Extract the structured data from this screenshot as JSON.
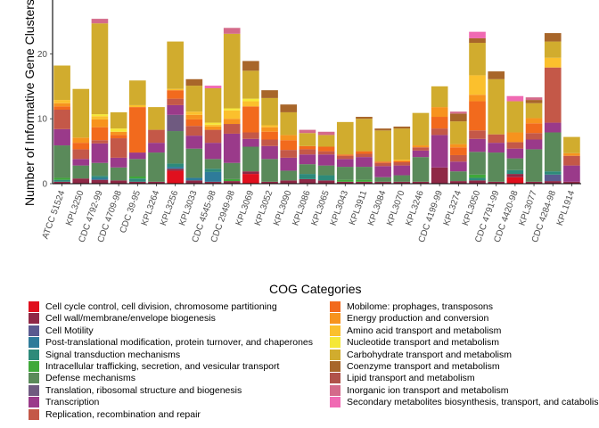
{
  "chart_data": {
    "type": "bar",
    "stacked": true,
    "ylabel": "Number of Informative Gene Clusters",
    "ylim": [
      0,
      28
    ],
    "yticks": [
      0,
      10,
      20
    ],
    "legend_title": "COG Categories",
    "legend_position": "bottom",
    "grid": false,
    "categories": [
      "ATCC 51524",
      "KPL3250",
      "CDC 4792-99",
      "CDC 4709-98",
      "CDC 39-95",
      "KPL3264",
      "KPL3256",
      "KPL3033",
      "CDC 4545-98",
      "CDC 2949-98",
      "KPL3069",
      "KPL3052",
      "KPL3090",
      "KPL3086",
      "KPL3065",
      "KPL3043",
      "KPL3911",
      "KPL3084",
      "KPL3070",
      "KPL3246",
      "CDC 4199-99",
      "KPL3274",
      "KPL3050",
      "CDC 4791-99",
      "CDC 4420-98",
      "KPL3077",
      "CDC 4284-98",
      "KPL1914"
    ],
    "series": [
      {
        "name": "Cell cycle control, cell division, chromosome partitioning",
        "color": "#e0101e",
        "values": [
          0,
          0,
          0,
          0,
          0,
          0,
          2,
          0,
          0,
          0,
          1.5,
          0,
          0,
          0,
          0,
          0,
          0,
          0,
          0,
          0,
          0,
          0,
          0,
          0,
          1,
          0,
          0,
          0
        ]
      },
      {
        "name": "Cell wall/membrane/envelope biogenesis",
        "color": "#8f2846",
        "values": [
          0.3,
          0.8,
          0.6,
          0.5,
          0.3,
          0.3,
          0.3,
          0.5,
          0.3,
          0.4,
          0.4,
          0.3,
          0.5,
          0.7,
          0.5,
          0.3,
          0.3,
          0.3,
          0.3,
          0.3,
          2.5,
          0.4,
          0.5,
          0.3,
          0.5,
          0.3,
          0.4,
          0.3
        ]
      },
      {
        "name": "Cell Motility",
        "color": "#5a5a8f",
        "values": [
          0,
          0,
          0,
          0,
          0,
          0,
          0,
          0,
          0,
          0,
          0,
          0,
          0,
          0,
          0,
          0,
          0,
          0,
          0,
          0,
          0,
          0,
          0,
          0,
          0,
          0,
          1,
          0
        ]
      },
      {
        "name": "Post-translational modification, protein turnover, and chaperones",
        "color": "#2e7b9a",
        "values": [
          0,
          0,
          0.3,
          0,
          0,
          0,
          0.3,
          0.4,
          1.5,
          0,
          0,
          0,
          0,
          0,
          0,
          0,
          0,
          0,
          0,
          0,
          0,
          0,
          0,
          0,
          0,
          0,
          0,
          0
        ]
      },
      {
        "name": "Signal transduction mechanisms",
        "color": "#2d8a7a",
        "values": [
          0.3,
          0,
          0.3,
          0,
          0.5,
          0,
          0.5,
          0,
          0.5,
          0,
          0,
          0,
          0,
          0.8,
          0.8,
          0,
          0,
          0,
          0,
          0,
          0,
          0,
          0.4,
          0,
          0.6,
          0,
          0.5,
          0
        ]
      },
      {
        "name": "Intracellular trafficking, secretion, and vesicular transport",
        "color": "#3fa83a",
        "values": [
          0.3,
          0,
          0,
          0,
          0.3,
          0,
          0,
          0,
          0,
          0.3,
          0,
          0,
          0,
          0,
          0,
          0.3,
          0.3,
          0,
          0,
          0,
          0,
          0,
          0.5,
          0,
          0,
          0,
          0,
          0
        ]
      },
      {
        "name": "Defense mechanisms",
        "color": "#5a8a5a",
        "values": [
          5,
          2,
          2,
          2,
          2.7,
          4.5,
          5,
          4.5,
          1.5,
          2.5,
          3.8,
          3.5,
          1.5,
          1.5,
          1.5,
          2,
          2,
          0.7,
          1,
          3.8,
          0,
          1.5,
          3.5,
          4.5,
          1.8,
          5,
          6,
          0
        ]
      },
      {
        "name": "Translation, ribosomal structure and biogenesis",
        "color": "#6f5a80",
        "values": [
          0,
          0,
          0,
          0,
          0,
          0,
          2.5,
          0,
          0,
          0,
          0,
          0,
          0,
          0,
          0,
          0,
          0,
          0,
          0,
          0,
          0,
          0,
          0,
          0,
          0,
          0,
          0,
          0
        ]
      },
      {
        "name": "Transcription",
        "color": "#9a3a8a",
        "values": [
          2.5,
          1,
          3,
          1.5,
          1,
          1.5,
          1.5,
          2,
          2.5,
          4.5,
          1.2,
          2,
          2,
          1.5,
          1.7,
          1.2,
          1.5,
          1.7,
          1.5,
          1,
          5,
          1.5,
          2,
          1.5,
          1.5,
          1.5,
          1.5,
          2.5
        ]
      },
      {
        "name": "Replication, recombination and repair",
        "color": "#c45848",
        "values": [
          3,
          1.5,
          0.5,
          3,
          0,
          2,
          1,
          1.5,
          2,
          1.5,
          1,
          1,
          1.2,
          0.8,
          0.5,
          0.5,
          0.5,
          0.5,
          0.5,
          0.5,
          1,
          1,
          1.3,
          1.3,
          1,
          1,
          8.5,
          1.5
        ]
      },
      {
        "name": "Mobilome: prophages, transposons",
        "color": "#f26a1d",
        "values": [
          0.5,
          1,
          2,
          0.5,
          7,
          0,
          1.3,
          1,
          0,
          0,
          4,
          1.2,
          1.5,
          0.5,
          0.7,
          0.2,
          0.4,
          0.2,
          0.2,
          0,
          1.8,
          1.2,
          4.5,
          0,
          0,
          1.5,
          0,
          0
        ]
      },
      {
        "name": "Energy production and conversion",
        "color": "#f7931e",
        "values": [
          0.5,
          0.8,
          1.2,
          0.5,
          0,
          0,
          0,
          0.7,
          0.5,
          0.8,
          0,
          0.7,
          0.8,
          0,
          0,
          0,
          0,
          0,
          0,
          0.3,
          1.5,
          0.5,
          1,
          0,
          1.5,
          0.8,
          0,
          0.4
        ]
      },
      {
        "name": "Amino acid transport and metabolism",
        "color": "#fbc02d",
        "values": [
          0.5,
          0,
          0.5,
          0,
          0.3,
          0,
          0.2,
          0.5,
          0.3,
          1.3,
          0.8,
          0.3,
          0,
          0,
          0,
          0,
          0,
          0,
          0.2,
          0,
          0,
          0,
          3,
          0,
          0,
          0,
          1.5,
          0
        ]
      },
      {
        "name": "Nucleotide transport and metabolism",
        "color": "#f5e838",
        "values": [
          0,
          0,
          0.3,
          0.5,
          0,
          0,
          0,
          0,
          0.3,
          0.3,
          0.4,
          0,
          0,
          0,
          0,
          0,
          0,
          0,
          0,
          0,
          0,
          0,
          0,
          0,
          0,
          0,
          0,
          0
        ]
      },
      {
        "name": "Carbohydrate transport and metabolism",
        "color": "#d1ac2e",
        "values": [
          5.3,
          7.5,
          14,
          2.5,
          3.8,
          3.5,
          7.3,
          4,
          5.3,
          11.5,
          4.3,
          4.2,
          3.5,
          2,
          1.8,
          5,
          5,
          4.8,
          4.8,
          5,
          3.2,
          3.5,
          5,
          8.5,
          4.8,
          2.3,
          2.5,
          2.5
        ]
      },
      {
        "name": "Coenzyme transport and metabolism",
        "color": "#a8662a",
        "values": [
          0,
          0,
          0,
          0,
          0,
          0,
          0,
          1,
          0,
          0,
          1.5,
          1.2,
          1.2,
          0,
          0,
          0,
          0.3,
          0.3,
          0.3,
          0,
          0,
          1.2,
          0.7,
          1.2,
          0,
          0.5,
          1.3,
          0
        ]
      },
      {
        "name": "Lipid transport and metabolism",
        "color": "#b0524a",
        "values": [
          0,
          0,
          0,
          0,
          0,
          0,
          0,
          0,
          0,
          0,
          0,
          0,
          0,
          0,
          0,
          0,
          0,
          0,
          0,
          0,
          0,
          0,
          0,
          0,
          0,
          0,
          0,
          0
        ]
      },
      {
        "name": "Inorganic ion transport and metabolism",
        "color": "#d46a8a",
        "values": [
          0,
          0,
          0.7,
          0,
          0,
          0,
          0,
          0,
          0,
          0.9,
          0,
          0,
          0,
          0.5,
          0.5,
          0,
          0,
          0,
          0,
          0,
          0,
          0.3,
          0,
          0,
          0,
          0.4,
          0,
          0
        ]
      },
      {
        "name": "Secondary metabolites biosynthesis, transport, and catabolism",
        "color": "#f06ab3",
        "values": [
          0,
          0,
          0,
          0,
          0,
          0,
          0,
          0,
          0.4,
          0,
          0,
          0,
          0,
          0,
          0,
          0,
          0,
          0,
          0,
          0,
          0,
          0,
          1,
          0,
          0.8,
          0,
          0,
          0
        ]
      }
    ]
  }
}
